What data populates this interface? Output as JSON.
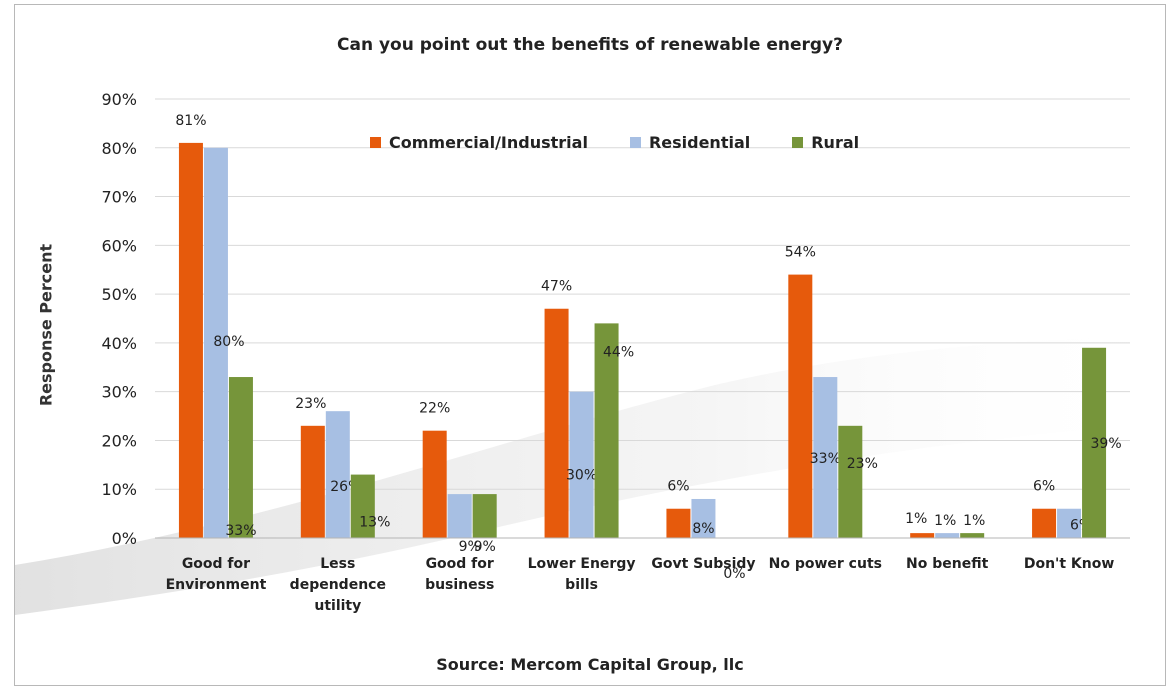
{
  "chart_data": {
    "type": "bar",
    "title": "Can you point out the benefits of renewable energy?",
    "ylabel": "Response Percent",
    "xlabel": "",
    "source": "Source: Mercom Capital Group, llc",
    "ylim": [
      0,
      90
    ],
    "yticks": [
      0,
      10,
      20,
      30,
      40,
      50,
      60,
      70,
      80,
      90
    ],
    "ytick_labels": [
      "0%",
      "10%",
      "20%",
      "30%",
      "40%",
      "50%",
      "60%",
      "70%",
      "80%",
      "90%"
    ],
    "grid": true,
    "legend_position": "top-center",
    "categories": [
      [
        "Good for",
        "Environment"
      ],
      [
        "Less",
        "dependence",
        "utility"
      ],
      [
        "Good for",
        "business"
      ],
      [
        "Lower Energy",
        "bills"
      ],
      [
        "Govt Subsidy"
      ],
      [
        "No power cuts"
      ],
      [
        "No benefit"
      ],
      [
        "Don't Know"
      ]
    ],
    "series": [
      {
        "name": "Commercial/Industrial",
        "color": "#e65a0c",
        "values": [
          81,
          23,
          22,
          47,
          6,
          54,
          1,
          6
        ],
        "labels": [
          "81%",
          "23%",
          "22%",
          "47%",
          "6%",
          "54%",
          "1%",
          "6%"
        ]
      },
      {
        "name": "Residential",
        "color": "#a7bfe3",
        "values": [
          80,
          26,
          9,
          30,
          8,
          33,
          1,
          6
        ],
        "labels": [
          "80%",
          "26%",
          "9%",
          "30%",
          "8%",
          "33%",
          "1%",
          "6%"
        ]
      },
      {
        "name": "Rural",
        "color": "#76953a",
        "values": [
          33,
          13,
          9,
          44,
          0,
          23,
          1,
          39
        ],
        "labels": [
          "33%",
          "13%",
          "9%",
          "44%",
          "0%",
          "23%",
          "1%",
          "39%"
        ]
      }
    ]
  }
}
